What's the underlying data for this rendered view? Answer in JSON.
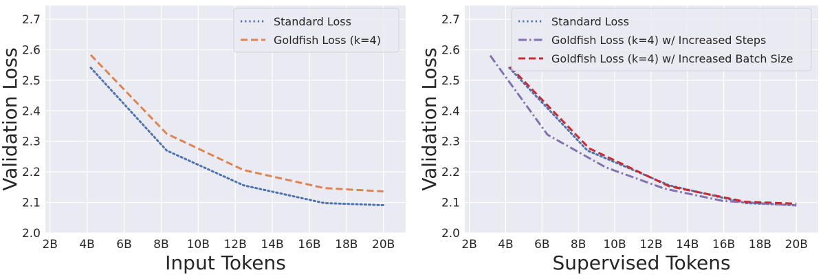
{
  "chart_data": [
    {
      "type": "line",
      "xlabel": "Input Tokens",
      "ylabel": "Validation Loss",
      "x_ticks": [
        "2B",
        "4B",
        "6B",
        "8B",
        "10B",
        "12B",
        "14B",
        "16B",
        "18B",
        "20B"
      ],
      "y_ticks": [
        "2.0",
        "2.1",
        "2.2",
        "2.3",
        "2.4",
        "2.5",
        "2.6",
        "2.7"
      ],
      "xlim": [
        1.75,
        21.2
      ],
      "ylim": [
        2.0,
        2.745
      ],
      "grid": true,
      "legend": "top-right",
      "series": [
        {
          "name": "Standard Loss",
          "color": "#4c72b0",
          "style": "dotted",
          "x": [
            4.2,
            8.3,
            12.45,
            16.8,
            20
          ],
          "y": [
            2.541,
            2.27,
            2.156,
            2.098,
            2.091
          ]
        },
        {
          "name": "Goldfish Loss (k=4)",
          "color": "#dd8452",
          "style": "dashed",
          "x": [
            4.2,
            8.3,
            12.45,
            16.8,
            20
          ],
          "y": [
            2.583,
            2.325,
            2.206,
            2.147,
            2.136
          ]
        }
      ]
    },
    {
      "type": "line",
      "xlabel": "Supervised Tokens",
      "ylabel": "Validation Loss",
      "x_ticks": [
        "2B",
        "4B",
        "6B",
        "8B",
        "10B",
        "12B",
        "14B",
        "16B",
        "18B",
        "20B"
      ],
      "y_ticks": [
        "2.0",
        "2.1",
        "2.2",
        "2.3",
        "2.4",
        "2.5",
        "2.6",
        "2.7"
      ],
      "xlim": [
        1.75,
        21.2
      ],
      "ylim": [
        2.0,
        2.745
      ],
      "grid": true,
      "legend": "top-right",
      "series": [
        {
          "name": "Standard Loss",
          "color": "#4c72b0",
          "style": "dotted",
          "x": [
            4.2,
            8.5,
            13.0,
            17.2,
            20
          ],
          "y": [
            2.541,
            2.27,
            2.156,
            2.098,
            2.091
          ]
        },
        {
          "name": "Goldfish Loss (k=4) w/ Increased Steps",
          "color": "#8172b3",
          "style": "dashdot",
          "x": [
            3.15,
            6.3,
            9.5,
            12.75,
            15.95,
            20
          ],
          "y": [
            2.581,
            2.322,
            2.215,
            2.145,
            2.105,
            2.09
          ]
        },
        {
          "name": "Goldfish Loss (k=4) w/ Increased Batch Size",
          "color": "#cc2a2e",
          "style": "dashed",
          "x": [
            4.25,
            8.6,
            13.0,
            17.2,
            20
          ],
          "y": [
            2.544,
            2.277,
            2.153,
            2.102,
            2.096
          ]
        }
      ]
    }
  ]
}
